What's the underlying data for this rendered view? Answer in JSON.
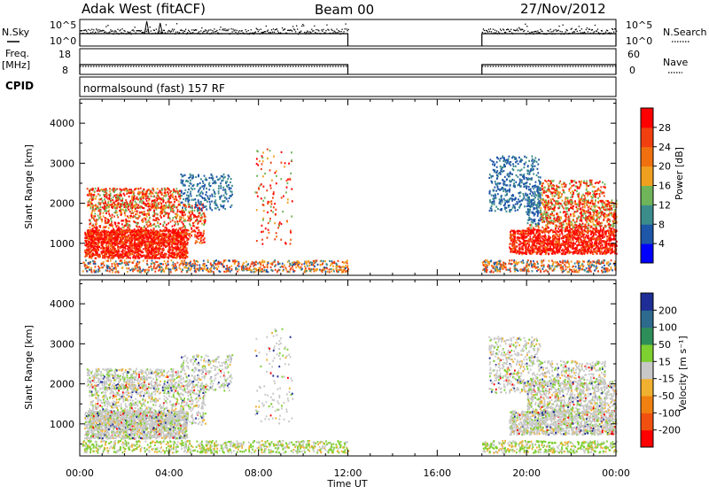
{
  "header": {
    "station": "Adak West (fitACF)",
    "beam": "Beam 00",
    "date": "27/Nov/2012"
  },
  "side_labels": {
    "nsky": "N.Sky",
    "nsearch": "N.Search",
    "freq": "Freq.",
    "mhz": "[MHz]",
    "nave": "Nave",
    "cpid": "CPID"
  },
  "cpid_text": "normalsound (fast) 157 RF",
  "chart_data": [
    {
      "type": "line",
      "name": "noise",
      "ylim_left_labels": [
        "10^5",
        "10^0"
      ],
      "ylim_right_labels": [
        "10^5",
        "10^0"
      ],
      "segments": [
        [
          0,
          12
        ],
        [
          18,
          24
        ]
      ],
      "gap": [
        12,
        18
      ]
    },
    {
      "type": "line",
      "name": "frequency",
      "left_ticks": [
        "18",
        "8"
      ],
      "right_ticks": [
        "60",
        "0"
      ],
      "segments": [
        [
          0,
          12
        ],
        [
          18,
          24
        ]
      ],
      "gap": [
        12,
        18
      ]
    },
    {
      "type": "heatmap",
      "name": "power",
      "xlabel": "",
      "ylabel": "Slant Range [km]",
      "yticks": [
        "1000",
        "2000",
        "3000",
        "4000"
      ],
      "ylim": [
        200,
        4600
      ],
      "xlim": [
        0,
        24
      ],
      "colorbar_label": "Power [dB]",
      "colorbar_ticks": [
        "4",
        "8",
        "12",
        "16",
        "20",
        "24",
        "28"
      ],
      "colors": [
        "#0000ff",
        "#1e56a8",
        "#3c8c8c",
        "#6fb45a",
        "#f0a020",
        "#f07010",
        "#f04010",
        "#ff0000"
      ]
    },
    {
      "type": "heatmap",
      "name": "velocity",
      "xlabel": "Time UT",
      "ylabel": "Slant Range [km]",
      "yticks": [
        "1000",
        "2000",
        "3000",
        "4000"
      ],
      "ylim": [
        200,
        4600
      ],
      "xlim": [
        0,
        24
      ],
      "xticks": [
        "00:00",
        "04:00",
        "08:00",
        "12:00",
        "16:00",
        "20:00",
        "00:00"
      ],
      "colorbar_label": "Velocity [m s⁻¹]",
      "colorbar_ticks": [
        "200",
        "100",
        "50",
        "15",
        "-15",
        "-50",
        "-100",
        "-200"
      ],
      "colors": [
        "#1e2e96",
        "#2e6a8e",
        "#2e8e5a",
        "#7ecf30",
        "#c8c8c8",
        "#f0b030",
        "#f08010",
        "#f05010",
        "#ff0000"
      ]
    }
  ]
}
